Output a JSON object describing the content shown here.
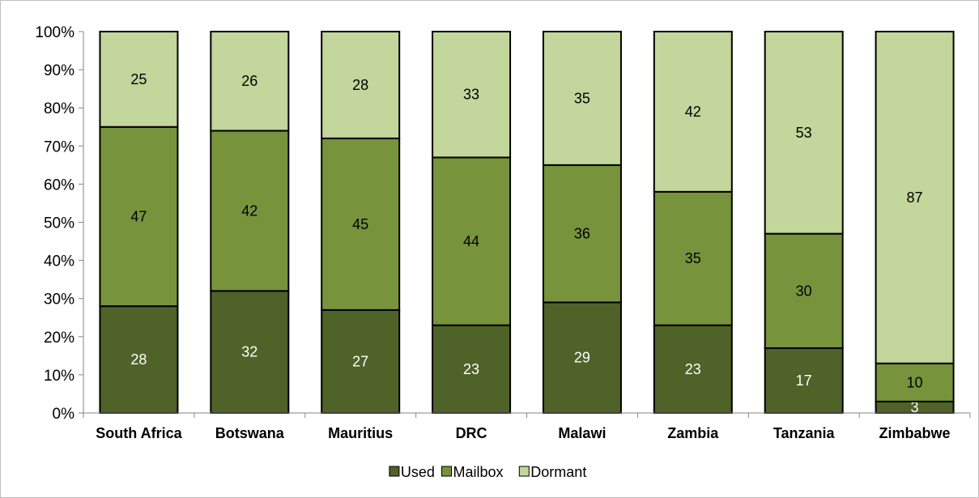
{
  "chart_data": {
    "type": "bar",
    "stacked": true,
    "normalized": true,
    "categories": [
      "South Africa",
      "Botswana",
      "Mauritius",
      "DRC",
      "Malawi",
      "Zambia",
      "Tanzania",
      "Zimbabwe"
    ],
    "series": [
      {
        "name": "Used",
        "values": [
          28,
          32,
          27,
          23,
          29,
          23,
          17,
          3
        ],
        "color": "#4f6228"
      },
      {
        "name": "Mailbox",
        "values": [
          47,
          42,
          45,
          44,
          36,
          35,
          30,
          10
        ],
        "color": "#77933c"
      },
      {
        "name": "Dormant",
        "values": [
          25,
          26,
          28,
          33,
          35,
          42,
          53,
          87
        ],
        "color": "#c3d69b"
      }
    ],
    "y_ticks": [
      "0%",
      "10%",
      "20%",
      "30%",
      "40%",
      "50%",
      "60%",
      "70%",
      "80%",
      "90%",
      "100%"
    ],
    "ylim": [
      0,
      100
    ],
    "grid": false,
    "legend": "bottom"
  }
}
